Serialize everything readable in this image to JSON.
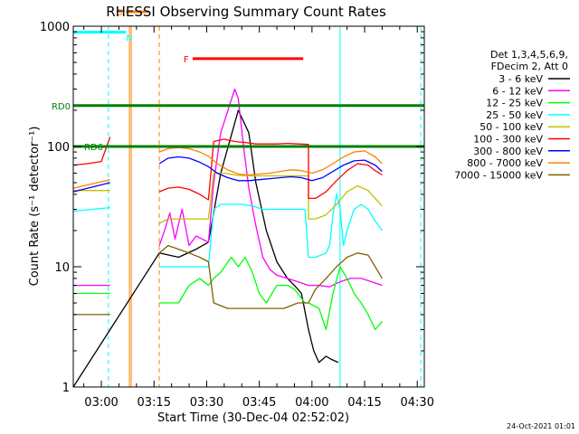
{
  "chart_data": {
    "type": "line",
    "title": "RHESSI Observing Summary Count Rates",
    "xlabel": "Start Time (30-Dec-04 02:52:02)",
    "ylabel": "Count Rate (s⁻¹ detector⁻¹)",
    "yscale": "log",
    "ylim": [
      1,
      1000
    ],
    "xlim_min": [
      0,
      100
    ],
    "x_ticks": [
      {
        "m": 8,
        "label": "03:00"
      },
      {
        "m": 23,
        "label": "03:15"
      },
      {
        "m": 38,
        "label": "03:30"
      },
      {
        "m": 53,
        "label": "03:45"
      },
      {
        "m": 68,
        "label": "04:00"
      },
      {
        "m": 83,
        "label": "04:15"
      },
      {
        "m": 98,
        "label": "04:30"
      }
    ],
    "y_ticks": [
      {
        "v": 1,
        "label": "1"
      },
      {
        "v": 10,
        "label": "10"
      },
      {
        "v": 100,
        "label": "100"
      },
      {
        "v": 1000,
        "label": "1000"
      }
    ],
    "legend_header": [
      "Det 1,3,4,5,6,9,",
      "FDecim 2, Att 0"
    ],
    "series": [
      {
        "name": "3 - 6 keV",
        "color": "#000000",
        "points": [
          [
            0,
            1
          ],
          [
            24.5,
            13
          ],
          [
            30,
            12
          ],
          [
            35,
            14
          ],
          [
            38.5,
            16
          ],
          [
            42,
            60
          ],
          [
            47,
            200
          ],
          [
            50,
            130
          ],
          [
            52,
            50
          ],
          [
            55,
            20
          ],
          [
            58,
            11
          ],
          [
            61,
            8
          ],
          [
            63,
            7
          ],
          [
            65,
            6
          ],
          [
            67,
            3
          ],
          [
            68.5,
            2
          ],
          [
            70,
            1.6
          ],
          [
            72,
            1.8
          ],
          [
            73.5,
            1.7
          ],
          [
            75.5,
            1.6
          ]
        ]
      },
      {
        "name": "6 - 12 keV",
        "color": "#ff00ff",
        "points": [
          [
            0,
            7
          ],
          [
            10.5,
            7
          ],
          [
            10.5,
            null
          ],
          [
            24.5,
            15
          ],
          [
            26,
            20
          ],
          [
            27.5,
            28
          ],
          [
            29,
            17
          ],
          [
            31,
            30
          ],
          [
            33,
            15
          ],
          [
            35,
            18
          ],
          [
            38.5,
            16
          ],
          [
            40,
            50
          ],
          [
            42,
            130
          ],
          [
            44.5,
            220
          ],
          [
            46,
            300
          ],
          [
            47,
            250
          ],
          [
            48.5,
            100
          ],
          [
            50,
            45
          ],
          [
            52,
            22
          ],
          [
            54,
            12
          ],
          [
            56,
            9.5
          ],
          [
            58,
            8.5
          ],
          [
            61,
            8
          ],
          [
            64,
            7.5
          ],
          [
            67,
            7
          ],
          [
            70,
            7
          ],
          [
            73,
            6.8
          ],
          [
            76,
            7.5
          ],
          [
            79,
            8
          ],
          [
            82,
            8
          ],
          [
            85,
            7.5
          ],
          [
            88,
            7
          ]
        ]
      },
      {
        "name": "12 - 25 keV",
        "color": "#00ff00",
        "points": [
          [
            0,
            6
          ],
          [
            10.5,
            6
          ],
          [
            10.5,
            null
          ],
          [
            24.5,
            5
          ],
          [
            30,
            5
          ],
          [
            33,
            7
          ],
          [
            36,
            8
          ],
          [
            38.5,
            7
          ],
          [
            40,
            8
          ],
          [
            42,
            9
          ],
          [
            45,
            12
          ],
          [
            47,
            10
          ],
          [
            49,
            12
          ],
          [
            51,
            9
          ],
          [
            53,
            6
          ],
          [
            55,
            5
          ],
          [
            58,
            7
          ],
          [
            61,
            7
          ],
          [
            63,
            6.5
          ],
          [
            66,
            5
          ],
          [
            67,
            5
          ],
          [
            70,
            4.5
          ],
          [
            72,
            3
          ],
          [
            74,
            6
          ],
          [
            76,
            10
          ],
          [
            78,
            8
          ],
          [
            80,
            6
          ],
          [
            82,
            5
          ],
          [
            84,
            4
          ],
          [
            86,
            3
          ],
          [
            88,
            3.5
          ]
        ]
      },
      {
        "name": "25 - 50 keV",
        "color": "#00ffff",
        "points": [
          [
            0,
            29
          ],
          [
            10.5,
            31
          ],
          [
            10.5,
            null
          ],
          [
            24.5,
            10
          ],
          [
            30,
            10
          ],
          [
            35,
            10
          ],
          [
            38.5,
            10
          ],
          [
            40,
            30
          ],
          [
            42,
            33
          ],
          [
            45,
            33
          ],
          [
            48,
            33
          ],
          [
            51,
            32
          ],
          [
            54,
            30
          ],
          [
            57,
            30
          ],
          [
            60,
            30
          ],
          [
            63,
            30
          ],
          [
            66,
            30
          ],
          [
            67,
            12
          ],
          [
            69,
            12
          ],
          [
            72,
            13
          ],
          [
            73,
            15
          ],
          [
            74,
            27
          ],
          [
            75,
            40
          ],
          [
            76,
            30
          ],
          [
            77,
            15
          ],
          [
            78,
            20
          ],
          [
            80,
            30
          ],
          [
            82,
            33
          ],
          [
            84,
            30
          ],
          [
            86,
            24
          ],
          [
            88,
            20
          ]
        ]
      },
      {
        "name": "50 - 100 keV",
        "color": "#c0c000",
        "points": [
          [
            0,
            43
          ],
          [
            10.5,
            43
          ],
          [
            10.5,
            null
          ],
          [
            24.5,
            23
          ],
          [
            27,
            25
          ],
          [
            30,
            25
          ],
          [
            33,
            25
          ],
          [
            36,
            25
          ],
          [
            38.5,
            25
          ],
          [
            40,
            60
          ],
          [
            43,
            60
          ],
          [
            46,
            58
          ],
          [
            49,
            57
          ],
          [
            52,
            57
          ],
          [
            55,
            57
          ],
          [
            58,
            57
          ],
          [
            61,
            57
          ],
          [
            64,
            57
          ],
          [
            67,
            57
          ],
          [
            67,
            25
          ],
          [
            69,
            25
          ],
          [
            72,
            27
          ],
          [
            75,
            33
          ],
          [
            78,
            42
          ],
          [
            81,
            47
          ],
          [
            84,
            43
          ],
          [
            86,
            37
          ],
          [
            88,
            32
          ]
        ]
      },
      {
        "name": "100 - 300 keV",
        "color": "#ff0000",
        "points": [
          [
            0,
            70
          ],
          [
            4,
            72
          ],
          [
            8,
            75
          ],
          [
            10.5,
            120
          ],
          [
            10.5,
            null
          ],
          [
            24.5,
            42
          ],
          [
            27,
            45
          ],
          [
            30,
            46
          ],
          [
            33,
            44
          ],
          [
            36,
            40
          ],
          [
            38.5,
            36
          ],
          [
            40,
            110
          ],
          [
            43,
            115
          ],
          [
            46,
            110
          ],
          [
            49,
            108
          ],
          [
            52,
            105
          ],
          [
            55,
            105
          ],
          [
            58,
            105
          ],
          [
            61,
            106
          ],
          [
            64,
            105
          ],
          [
            67,
            104
          ],
          [
            67,
            37
          ],
          [
            69,
            37
          ],
          [
            72,
            42
          ],
          [
            75,
            52
          ],
          [
            78,
            63
          ],
          [
            81,
            72
          ],
          [
            84,
            70
          ],
          [
            86,
            63
          ],
          [
            88,
            58
          ]
        ]
      },
      {
        "name": "300 - 800 keV",
        "color": "#0000ff",
        "points": [
          [
            0,
            42
          ],
          [
            10.5,
            50
          ],
          [
            10.5,
            null
          ],
          [
            24.5,
            72
          ],
          [
            27,
            80
          ],
          [
            30,
            82
          ],
          [
            33,
            80
          ],
          [
            36,
            74
          ],
          [
            38.5,
            68
          ],
          [
            41,
            60
          ],
          [
            44,
            55
          ],
          [
            47,
            52
          ],
          [
            50,
            52
          ],
          [
            53,
            53
          ],
          [
            56,
            54
          ],
          [
            59,
            55
          ],
          [
            62,
            56
          ],
          [
            65,
            55
          ],
          [
            68,
            52
          ],
          [
            71,
            55
          ],
          [
            74,
            62
          ],
          [
            77,
            70
          ],
          [
            80,
            76
          ],
          [
            83,
            77
          ],
          [
            86,
            70
          ],
          [
            88,
            62
          ]
        ]
      },
      {
        "name": "800 - 7000 keV",
        "color": "#ff8000",
        "points": [
          [
            0,
            45
          ],
          [
            10.5,
            53
          ],
          [
            10.5,
            null
          ],
          [
            24.5,
            90
          ],
          [
            27,
            96
          ],
          [
            30,
            98
          ],
          [
            33,
            96
          ],
          [
            36,
            90
          ],
          [
            38.5,
            83
          ],
          [
            41,
            72
          ],
          [
            44,
            64
          ],
          [
            47,
            59
          ],
          [
            50,
            58
          ],
          [
            53,
            59
          ],
          [
            56,
            60
          ],
          [
            59,
            62
          ],
          [
            62,
            64
          ],
          [
            65,
            63
          ],
          [
            68,
            60
          ],
          [
            71,
            64
          ],
          [
            74,
            72
          ],
          [
            77,
            82
          ],
          [
            80,
            90
          ],
          [
            83,
            92
          ],
          [
            86,
            82
          ],
          [
            88,
            72
          ]
        ]
      },
      {
        "name": "7000 - 15000 keV",
        "color": "#806000",
        "points": [
          [
            0,
            4
          ],
          [
            10.5,
            4
          ],
          [
            10.5,
            null
          ],
          [
            24.5,
            13
          ],
          [
            27,
            15
          ],
          [
            30,
            14
          ],
          [
            33,
            13
          ],
          [
            36,
            12
          ],
          [
            38.5,
            11
          ],
          [
            40,
            5
          ],
          [
            44,
            4.5
          ],
          [
            48,
            4.5
          ],
          [
            52,
            4.5
          ],
          [
            56,
            4.5
          ],
          [
            60,
            4.5
          ],
          [
            64,
            5
          ],
          [
            67,
            5
          ],
          [
            69,
            6.5
          ],
          [
            72,
            8
          ],
          [
            75,
            10
          ],
          [
            78,
            12
          ],
          [
            81,
            13
          ],
          [
            84,
            12.5
          ],
          [
            86,
            10
          ],
          [
            88,
            8
          ]
        ]
      }
    ],
    "flags": [
      {
        "label": "S",
        "color": "#ff8000",
        "m0": 15,
        "m1": 21.5,
        "y": 1.12
      },
      {
        "label": "N",
        "color": "#00ffff",
        "m0": 0,
        "m1": 15,
        "y": 0.95
      },
      {
        "label": "F",
        "color": "#ff0000",
        "m0": 34,
        "m1": 65.5,
        "y": 0.73
      },
      {
        "label": "RD0",
        "color": "#008000",
        "m0": 0,
        "m1": 100,
        "y": 0.34
      },
      {
        "label": "RD6",
        "color": "#008000",
        "m0": 0,
        "m1": 100,
        "y": 0.0
      }
    ],
    "vlines": [
      {
        "m": 10,
        "color": "#00ffff",
        "style": "dash"
      },
      {
        "m": 16,
        "color": "#ff8000",
        "style": "solid"
      },
      {
        "m": 16.5,
        "color": "#ff8000",
        "style": "solid"
      },
      {
        "m": 24.5,
        "color": "#ff8000",
        "style": "dash"
      },
      {
        "m": 76,
        "color": "#00ffff",
        "style": "solid"
      },
      {
        "m": 99,
        "color": "#00ffff",
        "style": "dash"
      }
    ]
  },
  "footer": {
    "date_stamp": "24-Oct-2021 01:01"
  }
}
